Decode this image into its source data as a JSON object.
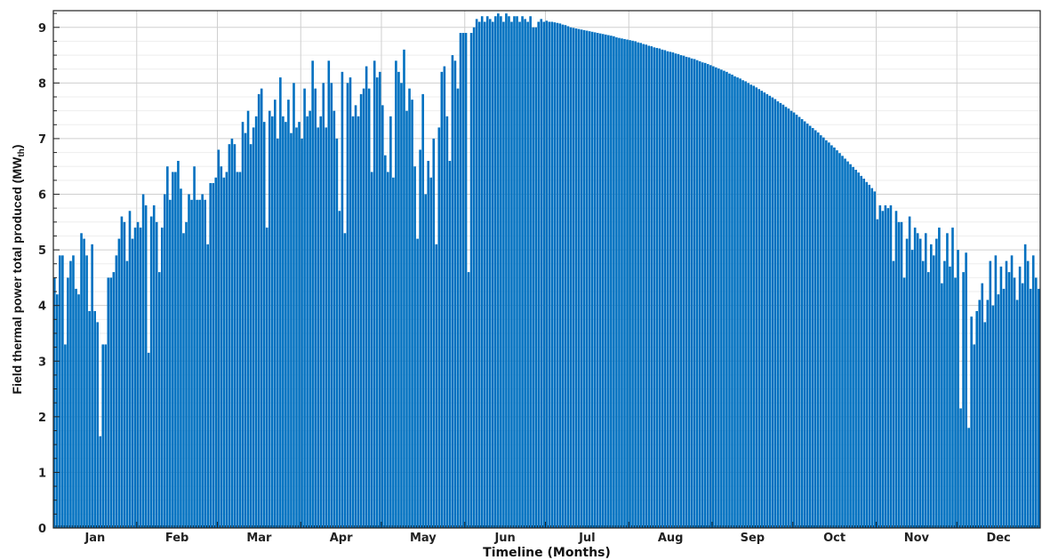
{
  "chart_data": {
    "type": "bar",
    "xlabel": "Timeline (Months)",
    "ylabel": "Field thermal power total produced (MW",
    "ylabel_sub": "th",
    "ylabel_close": ")",
    "ylim": [
      0,
      9.3
    ],
    "yticks": [
      "0",
      "1",
      "2",
      "3",
      "4",
      "5",
      "6",
      "7",
      "8",
      "9"
    ],
    "months": [
      "Jan",
      "Feb",
      "Mar",
      "Apr",
      "May",
      "Jun",
      "Jul",
      "Aug",
      "Sep",
      "Oct",
      "Nov",
      "Dec"
    ],
    "grid": true,
    "color": "#0070C0",
    "series": [
      {
        "x_unit": "day_of_year",
        "monthly_values": [
          [
            4.5,
            4.2,
            4.9,
            4.9,
            3.3,
            4.5,
            4.8,
            4.9,
            4.3,
            4.2,
            5.3,
            5.2,
            4.9,
            3.9,
            5.1,
            3.9,
            3.7,
            1.65,
            3.3,
            3.3,
            4.5,
            4.5,
            4.6,
            4.9,
            5.2,
            5.6,
            5.5,
            4.8,
            5.7,
            5.2,
            5.4
          ],
          [
            5.5,
            5.4,
            6.0,
            5.8,
            3.15,
            5.6,
            5.8,
            5.5,
            4.6,
            5.4,
            6.0,
            6.5,
            5.9,
            6.4,
            6.4,
            6.6,
            6.1,
            5.3,
            5.5,
            6.0,
            5.9,
            6.5,
            5.9,
            5.9,
            6.0,
            5.9,
            5.1,
            6.2,
            6.2,
            6.3
          ],
          [
            6.8,
            6.5,
            6.3,
            6.4,
            6.9,
            7.0,
            6.9,
            6.4,
            6.4,
            7.3,
            7.1,
            7.5,
            6.9,
            7.2,
            7.4,
            7.8,
            7.9,
            7.3,
            5.4,
            7.5,
            7.4,
            7.7,
            7.0,
            8.1,
            7.4,
            7.3,
            7.7,
            7.1,
            8.0,
            7.2,
            7.3
          ],
          [
            7.0,
            7.9,
            7.4,
            7.5,
            8.4,
            7.9,
            7.2,
            7.4,
            8.0,
            7.2,
            8.4,
            8.0,
            7.5,
            7.0,
            5.7,
            8.2,
            5.3,
            8.0,
            8.1,
            7.4,
            7.6,
            7.4,
            7.8,
            7.9,
            8.3,
            7.9,
            6.4,
            8.4,
            8.1,
            8.2
          ],
          [
            7.6,
            6.7,
            6.4,
            7.4,
            6.3,
            8.4,
            8.2,
            8.0,
            8.6,
            7.5,
            7.9,
            7.7,
            6.5,
            5.2,
            6.8,
            7.8,
            6.0,
            6.6,
            6.3,
            7.0,
            5.1,
            7.2,
            8.2,
            8.3,
            7.4,
            6.6,
            8.5,
            8.4,
            7.9,
            8.9,
            8.9
          ],
          [
            8.9,
            4.6,
            8.9,
            9.0,
            9.15,
            9.1,
            9.2,
            9.1,
            9.2,
            9.15,
            9.1,
            9.2,
            9.25,
            9.2,
            9.1,
            9.25,
            9.2,
            9.1,
            9.2,
            9.2,
            9.1,
            9.2,
            9.15,
            9.1,
            9.2,
            9.0,
            9.0,
            9.1,
            9.15,
            9.1
          ],
          [
            9.12,
            9.1,
            9.1,
            9.09,
            9.08,
            9.07,
            9.05,
            9.04,
            9.02,
            9.0,
            8.99,
            8.98,
            8.97,
            8.96,
            8.95,
            8.94,
            8.93,
            8.92,
            8.91,
            8.9,
            8.89,
            8.88,
            8.87,
            8.86,
            8.85,
            8.84,
            8.82,
            8.81,
            8.8,
            8.79,
            8.78
          ],
          [
            8.77,
            8.76,
            8.75,
            8.73,
            8.72,
            8.7,
            8.69,
            8.67,
            8.66,
            8.64,
            8.63,
            8.62,
            8.6,
            8.59,
            8.57,
            8.56,
            8.55,
            8.53,
            8.52,
            8.5,
            8.49,
            8.47,
            8.46,
            8.44,
            8.43,
            8.41,
            8.39,
            8.37,
            8.36,
            8.34,
            8.32
          ],
          [
            8.3,
            8.28,
            8.26,
            8.24,
            8.22,
            8.2,
            8.17,
            8.15,
            8.12,
            8.1,
            8.08,
            8.05,
            8.03,
            8.0,
            7.97,
            7.95,
            7.92,
            7.89,
            7.86,
            7.83,
            7.8,
            7.77,
            7.74,
            7.71,
            7.67,
            7.64,
            7.61,
            7.57,
            7.54,
            7.5
          ],
          [
            7.47,
            7.43,
            7.39,
            7.35,
            7.31,
            7.27,
            7.23,
            7.19,
            7.15,
            7.11,
            7.06,
            7.02,
            6.97,
            6.93,
            6.88,
            6.84,
            6.79,
            6.74,
            6.69,
            6.64,
            6.59,
            6.54,
            6.49,
            6.44,
            6.39,
            6.33,
            6.28,
            6.22,
            6.17,
            6.11,
            6.05
          ],
          [
            5.55,
            5.8,
            5.7,
            5.8,
            5.75,
            5.8,
            4.8,
            5.7,
            5.5,
            5.5,
            4.5,
            5.2,
            5.6,
            5.0,
            5.4,
            5.3,
            5.2,
            4.8,
            5.3,
            4.6,
            5.1,
            4.9,
            5.2,
            5.4,
            4.4,
            4.8,
            5.3,
            4.7,
            5.4,
            4.5
          ],
          [
            5.0,
            2.15,
            4.6,
            4.95,
            1.8,
            3.8,
            3.3,
            3.9,
            4.1,
            4.4,
            3.7,
            4.1,
            4.8,
            4.0,
            4.9,
            4.2,
            4.7,
            4.3,
            4.8,
            4.6,
            4.9,
            4.5,
            4.1,
            4.7,
            4.4,
            5.1,
            4.8,
            4.3,
            4.9,
            4.5,
            4.3
          ]
        ]
      }
    ]
  }
}
